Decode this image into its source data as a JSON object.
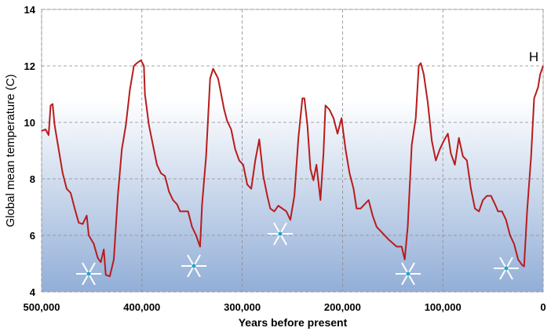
{
  "chart_data": {
    "type": "line",
    "x_label": "Years before present",
    "y_label": "Global mean temperature  (C)",
    "annotation": "H",
    "xlim": [
      500000,
      0
    ],
    "xticks": [
      {
        "value": 500000,
        "label": "500,000"
      },
      {
        "value": 400000,
        "label": "400,000"
      },
      {
        "value": 300000,
        "label": "300,000"
      },
      {
        "value": 200000,
        "label": "200,000"
      },
      {
        "value": 100000,
        "label": "100,000"
      },
      0
    ],
    "ylim": [
      4,
      14
    ],
    "yticks": [
      4,
      6,
      8,
      10,
      12,
      14
    ],
    "grid": true,
    "series": [
      {
        "color": "#b81c1c",
        "x": [
          500000,
          496000,
          493000,
          491000,
          489000,
          487000,
          483000,
          479000,
          475000,
          471000,
          467000,
          463000,
          459000,
          455000,
          453000,
          448000,
          444000,
          441000,
          438000,
          436000,
          432000,
          428000,
          424000,
          420000,
          416000,
          412000,
          408000,
          405000,
          401000,
          398000,
          397000,
          393000,
          389000,
          385000,
          381000,
          377000,
          373000,
          369000,
          365000,
          362000,
          354000,
          350000,
          346000,
          342000,
          340000,
          336000,
          332000,
          329000,
          324000,
          318000,
          315000,
          311000,
          307000,
          303000,
          299000,
          295000,
          291000,
          287000,
          283000,
          279000,
          275000,
          272000,
          268000,
          264000,
          260000,
          256000,
          252000,
          248000,
          244000,
          240000,
          238000,
          235000,
          232000,
          229000,
          226000,
          222000,
          219000,
          217000,
          213000,
          209000,
          205000,
          201000,
          197000,
          193000,
          189000,
          186000,
          182000,
          178000,
          174000,
          170000,
          166000,
          162000,
          158000,
          154000,
          146000,
          141000,
          138000,
          135000,
          131000,
          127000,
          124000,
          122000,
          119000,
          115000,
          111000,
          107000,
          103000,
          99000,
          95000,
          92000,
          88000,
          84000,
          80000,
          76000,
          72000,
          68000,
          64000,
          60000,
          56000,
          52000,
          48000,
          45000,
          41000,
          37000,
          33000,
          29000,
          25000,
          21000,
          19000,
          16000,
          12000,
          9000,
          5000,
          3000,
          0
        ],
        "values": [
          9.7,
          9.75,
          9.55,
          10.6,
          10.65,
          9.9,
          9.05,
          8.2,
          7.65,
          7.5,
          6.95,
          6.45,
          6.4,
          6.7,
          6.0,
          5.7,
          5.2,
          5.05,
          5.5,
          4.6,
          4.55,
          5.15,
          7.4,
          9.05,
          9.9,
          11.15,
          12.0,
          12.1,
          12.2,
          12.0,
          11.0,
          9.9,
          9.2,
          8.5,
          8.2,
          8.1,
          7.55,
          7.25,
          7.1,
          6.85,
          6.85,
          6.3,
          6.0,
          5.6,
          7.1,
          8.8,
          11.55,
          11.9,
          11.55,
          10.45,
          10.05,
          9.75,
          9.05,
          8.65,
          8.5,
          7.8,
          7.65,
          8.65,
          9.4,
          8.1,
          7.4,
          6.95,
          6.85,
          7.05,
          6.95,
          6.85,
          6.55,
          7.4,
          9.45,
          10.85,
          10.85,
          9.9,
          8.35,
          7.95,
          8.5,
          7.25,
          8.9,
          10.6,
          10.45,
          10.15,
          9.6,
          10.15,
          9.05,
          8.2,
          7.65,
          6.95,
          6.95,
          7.1,
          7.25,
          6.7,
          6.3,
          6.15,
          6.0,
          5.85,
          5.6,
          5.6,
          5.15,
          6.3,
          9.2,
          10.15,
          12.0,
          12.1,
          11.7,
          10.7,
          9.35,
          8.65,
          9.05,
          9.35,
          9.6,
          8.9,
          8.5,
          9.45,
          8.8,
          8.65,
          7.65,
          6.95,
          6.85,
          7.25,
          7.4,
          7.4,
          7.1,
          6.85,
          6.85,
          6.55,
          6.0,
          5.7,
          5.15,
          4.95,
          4.9,
          6.85,
          8.8,
          10.85,
          11.25,
          11.7,
          12.0
        ]
      }
    ]
  }
}
